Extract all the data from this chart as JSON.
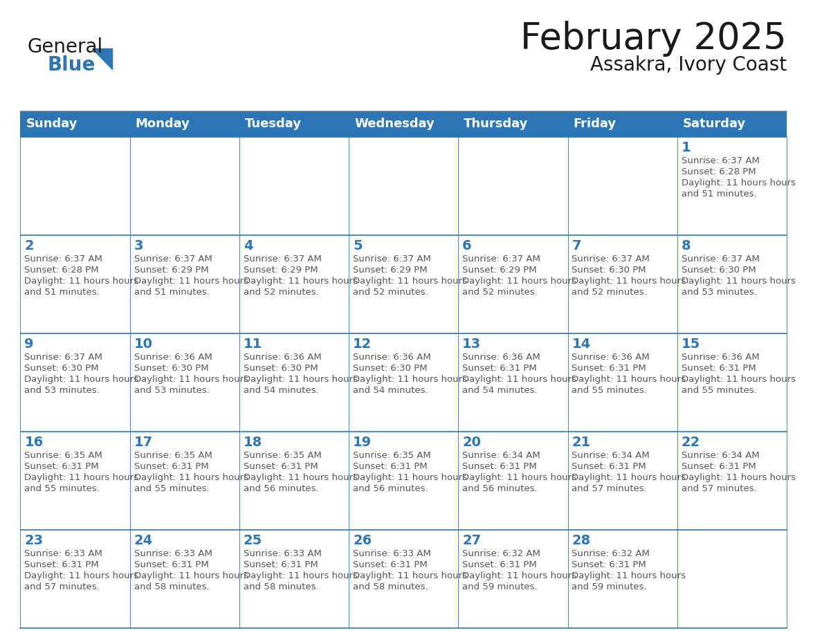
{
  "title": "February 2025",
  "subtitle": "Assakra, Ivory Coast",
  "header_bg": "#2E75B6",
  "header_text_color": "#FFFFFF",
  "cell_bg": "#FFFFFF",
  "cell_border_color": "#2E75B6",
  "day_number_color": "#2E75B6",
  "info_text_color": "#555555",
  "days_of_week": [
    "Sunday",
    "Monday",
    "Tuesday",
    "Wednesday",
    "Thursday",
    "Friday",
    "Saturday"
  ],
  "logo_general_color": "#1a1a1a",
  "logo_blue_color": "#2E75B6",
  "calendar": [
    [
      null,
      null,
      null,
      null,
      null,
      null,
      1
    ],
    [
      2,
      3,
      4,
      5,
      6,
      7,
      8
    ],
    [
      9,
      10,
      11,
      12,
      13,
      14,
      15
    ],
    [
      16,
      17,
      18,
      19,
      20,
      21,
      22
    ],
    [
      23,
      24,
      25,
      26,
      27,
      28,
      null
    ]
  ],
  "cell_data": {
    "1": {
      "sunrise": "6:37 AM",
      "sunset": "6:28 PM",
      "daylight": "11 hours and 51 minutes"
    },
    "2": {
      "sunrise": "6:37 AM",
      "sunset": "6:28 PM",
      "daylight": "11 hours and 51 minutes"
    },
    "3": {
      "sunrise": "6:37 AM",
      "sunset": "6:29 PM",
      "daylight": "11 hours and 51 minutes"
    },
    "4": {
      "sunrise": "6:37 AM",
      "sunset": "6:29 PM",
      "daylight": "11 hours and 52 minutes"
    },
    "5": {
      "sunrise": "6:37 AM",
      "sunset": "6:29 PM",
      "daylight": "11 hours and 52 minutes"
    },
    "6": {
      "sunrise": "6:37 AM",
      "sunset": "6:29 PM",
      "daylight": "11 hours and 52 minutes"
    },
    "7": {
      "sunrise": "6:37 AM",
      "sunset": "6:30 PM",
      "daylight": "11 hours and 52 minutes"
    },
    "8": {
      "sunrise": "6:37 AM",
      "sunset": "6:30 PM",
      "daylight": "11 hours and 53 minutes"
    },
    "9": {
      "sunrise": "6:37 AM",
      "sunset": "6:30 PM",
      "daylight": "11 hours and 53 minutes"
    },
    "10": {
      "sunrise": "6:36 AM",
      "sunset": "6:30 PM",
      "daylight": "11 hours and 53 minutes"
    },
    "11": {
      "sunrise": "6:36 AM",
      "sunset": "6:30 PM",
      "daylight": "11 hours and 54 minutes"
    },
    "12": {
      "sunrise": "6:36 AM",
      "sunset": "6:30 PM",
      "daylight": "11 hours and 54 minutes"
    },
    "13": {
      "sunrise": "6:36 AM",
      "sunset": "6:31 PM",
      "daylight": "11 hours and 54 minutes"
    },
    "14": {
      "sunrise": "6:36 AM",
      "sunset": "6:31 PM",
      "daylight": "11 hours and 55 minutes"
    },
    "15": {
      "sunrise": "6:36 AM",
      "sunset": "6:31 PM",
      "daylight": "11 hours and 55 minutes"
    },
    "16": {
      "sunrise": "6:35 AM",
      "sunset": "6:31 PM",
      "daylight": "11 hours and 55 minutes"
    },
    "17": {
      "sunrise": "6:35 AM",
      "sunset": "6:31 PM",
      "daylight": "11 hours and 55 minutes"
    },
    "18": {
      "sunrise": "6:35 AM",
      "sunset": "6:31 PM",
      "daylight": "11 hours and 56 minutes"
    },
    "19": {
      "sunrise": "6:35 AM",
      "sunset": "6:31 PM",
      "daylight": "11 hours and 56 minutes"
    },
    "20": {
      "sunrise": "6:34 AM",
      "sunset": "6:31 PM",
      "daylight": "11 hours and 56 minutes"
    },
    "21": {
      "sunrise": "6:34 AM",
      "sunset": "6:31 PM",
      "daylight": "11 hours and 57 minutes"
    },
    "22": {
      "sunrise": "6:34 AM",
      "sunset": "6:31 PM",
      "daylight": "11 hours and 57 minutes"
    },
    "23": {
      "sunrise": "6:33 AM",
      "sunset": "6:31 PM",
      "daylight": "11 hours and 57 minutes"
    },
    "24": {
      "sunrise": "6:33 AM",
      "sunset": "6:31 PM",
      "daylight": "11 hours and 58 minutes"
    },
    "25": {
      "sunrise": "6:33 AM",
      "sunset": "6:31 PM",
      "daylight": "11 hours and 58 minutes"
    },
    "26": {
      "sunrise": "6:33 AM",
      "sunset": "6:31 PM",
      "daylight": "11 hours and 58 minutes"
    },
    "27": {
      "sunrise": "6:32 AM",
      "sunset": "6:31 PM",
      "daylight": "11 hours and 59 minutes"
    },
    "28": {
      "sunrise": "6:32 AM",
      "sunset": "6:31 PM",
      "daylight": "11 hours and 59 minutes"
    }
  }
}
